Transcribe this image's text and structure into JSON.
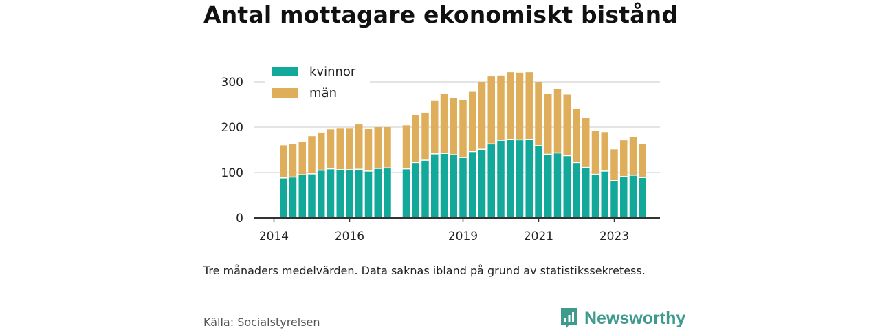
{
  "title": "Antal mottagare ekonomiskt bistånd",
  "note": "Tre månaders medelvärden. Data saknas ibland på grund av statistikssekretess.",
  "source": "Källa: Socialstyrelsen",
  "brand": {
    "name": "Newsworthy",
    "icon": "newsworthy-logo-icon",
    "color": "#3d9a8c"
  },
  "chart_data": {
    "type": "bar",
    "stacked": true,
    "title": "Antal mottagare ekonomiskt bistånd",
    "xlabel": "",
    "ylabel": "",
    "ylim": [
      0,
      330
    ],
    "y_ticks": [
      0,
      100,
      200,
      300
    ],
    "x_tick_labels": [
      "2014",
      "2016",
      "2019",
      "2021",
      "2023"
    ],
    "grid": "horizontal",
    "legend_position": "top-left",
    "categories": [
      "2014-04",
      "2014-07",
      "2014-10",
      "2015-01",
      "2015-04",
      "2015-07",
      "2015-10",
      "2016-01",
      "2016-04",
      "2016-07",
      "2016-10",
      "2017-01",
      "2017-07",
      "2017-10",
      "2018-01",
      "2018-04",
      "2018-07",
      "2018-10",
      "2019-01",
      "2019-04",
      "2019-07",
      "2019-10",
      "2020-01",
      "2020-04",
      "2020-07",
      "2020-10",
      "2021-01",
      "2021-04",
      "2021-07",
      "2021-10",
      "2022-01",
      "2022-04",
      "2022-07",
      "2022-10",
      "2023-01",
      "2023-04",
      "2023-07",
      "2023-10"
    ],
    "series": [
      {
        "name": "kvinnor",
        "color": "#12a89a",
        "values": [
          87,
          89,
          94,
          96,
          104,
          107,
          105,
          105,
          106,
          102,
          108,
          109,
          107,
          121,
          126,
          140,
          141,
          138,
          132,
          145,
          150,
          162,
          170,
          172,
          171,
          172,
          158,
          139,
          142,
          136,
          121,
          110,
          95,
          102,
          81,
          90,
          93,
          88
        ]
      },
      {
        "name": "män",
        "color": "#dfae5a",
        "values": [
          73,
          74,
          73,
          84,
          84,
          88,
          93,
          93,
          100,
          94,
          92,
          91,
          97,
          105,
          106,
          118,
          132,
          127,
          128,
          133,
          150,
          150,
          144,
          149,
          149,
          149,
          142,
          134,
          142,
          136,
          120,
          111,
          97,
          87,
          70,
          81,
          85,
          75
        ]
      }
    ]
  }
}
